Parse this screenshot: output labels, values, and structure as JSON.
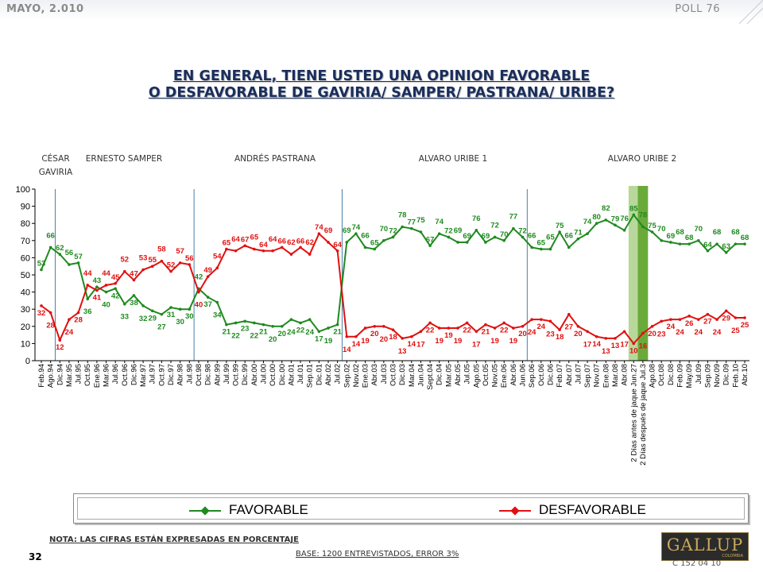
{
  "header": {
    "date": "MAYO, 2.010",
    "poll": "POLL 76"
  },
  "title": {
    "line1": "EN GENERAL, TIENE USTED UNA OPINION FAVORABLE",
    "line2": "O DESFAVORABLE DE  GAVIRIA/ SAMPER/ PASTRANA/ URIBE?"
  },
  "periods": {
    "gaviria": "CÉSAR GAVIRIA",
    "samper": "ERNESTO SAMPER",
    "pastrana": "ANDRÉS  PASTRANA",
    "uribe1": "ALVARO URIBE 1",
    "uribe2": "ALVARO URIBE 2"
  },
  "colors": {
    "favorable": "#1f8a1f",
    "desfavorable": "#e01010",
    "divider": "#4a7fa8",
    "band_light": "#b7d89a",
    "band_dark": "#6aaa3a"
  },
  "chart_data": {
    "type": "line",
    "ylim": [
      0,
      100
    ],
    "yticks": [
      0,
      10,
      20,
      30,
      40,
      50,
      60,
      70,
      80,
      90,
      100
    ],
    "grid": false,
    "legend_position": "bottom",
    "categories": [
      "Feb.94",
      "Ago.94",
      "Dic.94",
      "Mar.95",
      "Jul.95",
      "Oct.95",
      "Ene.96",
      "Mar.96",
      "Jul.96",
      "Oct.96",
      "Dic.96",
      "Mar.97",
      "Jul.97",
      "Oct.97",
      "Dic.97",
      "Abr.98",
      "Jul.98",
      "Oct.98",
      "Dic.98",
      "Abr.99",
      "Jul.99",
      "Oct.99",
      "Dic.99",
      "Abr.00",
      "Jul.00",
      "Oct.00",
      "Dic.00",
      "Abr.01",
      "Jul.01",
      "Sep.01",
      "Dic.01",
      "Abr.02",
      "Jul.02",
      "Sep.02",
      "Nov.02",
      "Ene.03",
      "Abr.03",
      "Jul.03",
      "Oct.03",
      "Dic.03",
      "Mar.04",
      "Jun.04",
      "Sept.04",
      "Dic.04",
      "Mar.05",
      "Abr.05",
      "Jul.05",
      "Ago.05",
      "Oct.05",
      "Nov.05",
      "Ene.06",
      "Abr.06",
      "Jun.06",
      "Sep.06",
      "Oct.06",
      "Dic.06",
      "Feb.07",
      "Abr.07",
      "Jul.07",
      "Sep.07",
      "Nov.07",
      "Ene.08",
      "Mar.08",
      "Abr.08",
      "2 Días antes de jaque Jun.27",
      "2 Días después de jaque Jul.3",
      "Ago.08",
      "Oct.08",
      "Dic.08",
      "Feb.09",
      "May.09",
      "Jul.09",
      "Sep.09",
      "Nov.09",
      "Dic.09",
      "Feb.10",
      "Abr.10"
    ],
    "series": [
      {
        "name": "FAVORABLE",
        "values": [
          53,
          66,
          62,
          56,
          57,
          36,
          43,
          40,
          42,
          33,
          38,
          32,
          29,
          27,
          31,
          30,
          30,
          42,
          37,
          34,
          21,
          22,
          23,
          22,
          21,
          20,
          20,
          24,
          22,
          24,
          17,
          19,
          21,
          69,
          74,
          66,
          65,
          70,
          72,
          78,
          77,
          75,
          67,
          74,
          72,
          69,
          69,
          76,
          69,
          72,
          70,
          77,
          72,
          66,
          65,
          65,
          75,
          66,
          71,
          74,
          80,
          82,
          79,
          76,
          85,
          78,
          75,
          70,
          69,
          68,
          68,
          70,
          64,
          68,
          63,
          68,
          68
        ],
        "labels": [
          "53",
          "66",
          "62",
          "56",
          "57",
          "36",
          "43",
          "40",
          "42",
          "33",
          "38",
          "32",
          "29",
          "27",
          "31",
          "30",
          "30",
          "42",
          "37",
          "34",
          "21",
          "22",
          "23",
          "22",
          "21",
          "20",
          "20",
          "24",
          "22",
          "24",
          "17",
          "19",
          "21",
          "69",
          "74",
          "66",
          "65",
          "70",
          "72",
          "78",
          "77",
          "75",
          "67",
          "74",
          "72",
          "69",
          "69",
          "76",
          "69",
          "72",
          "70",
          "77",
          "72",
          "66",
          "65",
          "65",
          "75",
          "66",
          "71",
          "74",
          "80",
          "82",
          "79",
          "76",
          "85",
          "78",
          "75",
          "70",
          "69",
          "68",
          "68",
          "70",
          "64",
          "68",
          "63",
          "68",
          "68"
        ]
      },
      {
        "name": "DESFAVORABLE",
        "values": [
          32,
          28,
          12,
          24,
          28,
          44,
          41,
          44,
          45,
          52,
          47,
          53,
          55,
          58,
          52,
          57,
          56,
          40,
          49,
          54,
          65,
          64,
          67,
          65,
          64,
          64,
          66,
          62,
          66,
          62,
          74,
          69,
          64,
          14,
          14,
          19,
          20,
          20,
          18,
          13,
          14,
          17,
          22,
          19,
          19,
          19,
          22,
          17,
          21,
          19,
          22,
          19,
          20,
          24,
          24,
          23,
          18,
          27,
          20,
          17,
          14,
          13,
          13,
          17,
          10,
          16,
          20,
          23,
          24,
          24,
          26,
          24,
          27,
          24,
          29,
          25,
          25
        ],
        "labels": [
          "32",
          "28",
          "12",
          "24",
          "28",
          "44",
          "41",
          "44",
          "45",
          "52",
          "47",
          "53",
          "55",
          "58",
          "52",
          "57",
          "56",
          "40",
          "49",
          "54",
          "65",
          "64",
          "67",
          "65",
          "64",
          "64",
          "66",
          "62",
          "66",
          "62",
          "74",
          "69",
          "64",
          "14",
          "14",
          "19",
          "20",
          "20",
          "18",
          "13",
          "14",
          "17",
          "22",
          "19",
          "19",
          "19",
          "22",
          "17",
          "21",
          "19",
          "22",
          "19",
          "20",
          "24",
          "24",
          "23",
          "18",
          "27",
          "20",
          "17",
          "14",
          "13",
          "13",
          "17",
          "10",
          "16",
          "20",
          "23",
          "24",
          "24",
          "26",
          "24",
          "27",
          "24",
          "29",
          "25",
          "25"
        ]
      }
    ]
  },
  "legend": {
    "favorable": "FAVORABLE",
    "desfavorable": "DESFAVORABLE"
  },
  "footer": {
    "note": "NOTA: LAS CIFRAS ESTÁN EXPRESADAS EN PORCENTAJE",
    "base": "BASE: 1200 ENTREVISTADOS, ERROR 3%",
    "page": "32",
    "logo": "GALLUP",
    "logo_sub": "COLOMBIA",
    "code": "C 152 04 10"
  }
}
